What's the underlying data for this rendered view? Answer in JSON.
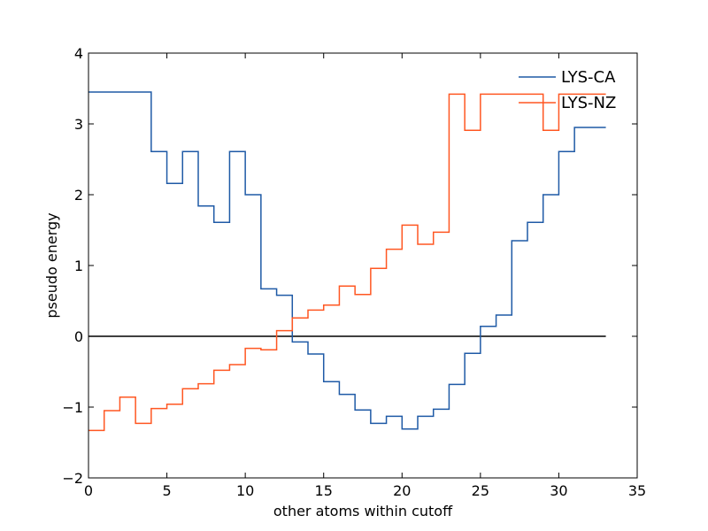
{
  "chart_data": {
    "type": "line",
    "step": "post",
    "title": "",
    "xlabel": "other atoms within cutoff",
    "ylabel": "pseudo energy",
    "xlim": [
      0,
      35
    ],
    "ylim": [
      -2,
      4
    ],
    "xticks": [
      0,
      5,
      10,
      15,
      20,
      25,
      30,
      35
    ],
    "yticks": [
      -2,
      -1,
      0,
      1,
      2,
      3,
      4
    ],
    "xtick_labels": [
      "0",
      "5",
      "10",
      "15",
      "20",
      "25",
      "30",
      "35"
    ],
    "ytick_labels": [
      "−2",
      "−1",
      "0",
      "1",
      "2",
      "3",
      "4"
    ],
    "grid": false,
    "legend_position": "top-right",
    "reference_line": {
      "y": 0,
      "x_range": [
        0,
        33
      ],
      "color": "#000000"
    },
    "x": [
      0,
      1,
      2,
      3,
      4,
      5,
      6,
      7,
      8,
      9,
      10,
      11,
      12,
      13,
      14,
      15,
      16,
      17,
      18,
      19,
      20,
      21,
      22,
      23,
      24,
      25,
      26,
      27,
      28,
      29,
      30,
      31,
      32,
      33
    ],
    "series": [
      {
        "name": "LYS-CA",
        "color": "#1f5aa6",
        "values": [
          3.45,
          3.45,
          3.45,
          3.45,
          2.61,
          2.16,
          2.61,
          1.84,
          1.61,
          2.61,
          2.0,
          0.67,
          0.58,
          -0.08,
          -0.25,
          -0.64,
          -0.82,
          -1.04,
          -1.23,
          -1.13,
          -1.31,
          -1.13,
          -1.03,
          -0.68,
          -0.24,
          0.14,
          0.3,
          1.35,
          1.61,
          2.0,
          2.61,
          2.95,
          2.95,
          2.95
        ]
      },
      {
        "name": "LYS-NZ",
        "color": "#ff5722",
        "values": [
          -1.33,
          -1.05,
          -0.86,
          -1.23,
          -1.02,
          -0.96,
          -0.74,
          -0.67,
          -0.48,
          -0.4,
          -0.17,
          -0.19,
          0.08,
          0.26,
          0.37,
          0.44,
          0.71,
          0.59,
          0.96,
          1.23,
          1.57,
          1.3,
          1.47,
          3.42,
          2.91,
          3.42,
          3.42,
          3.42,
          3.42,
          2.91,
          3.42,
          3.42,
          3.42,
          3.42
        ]
      }
    ]
  }
}
